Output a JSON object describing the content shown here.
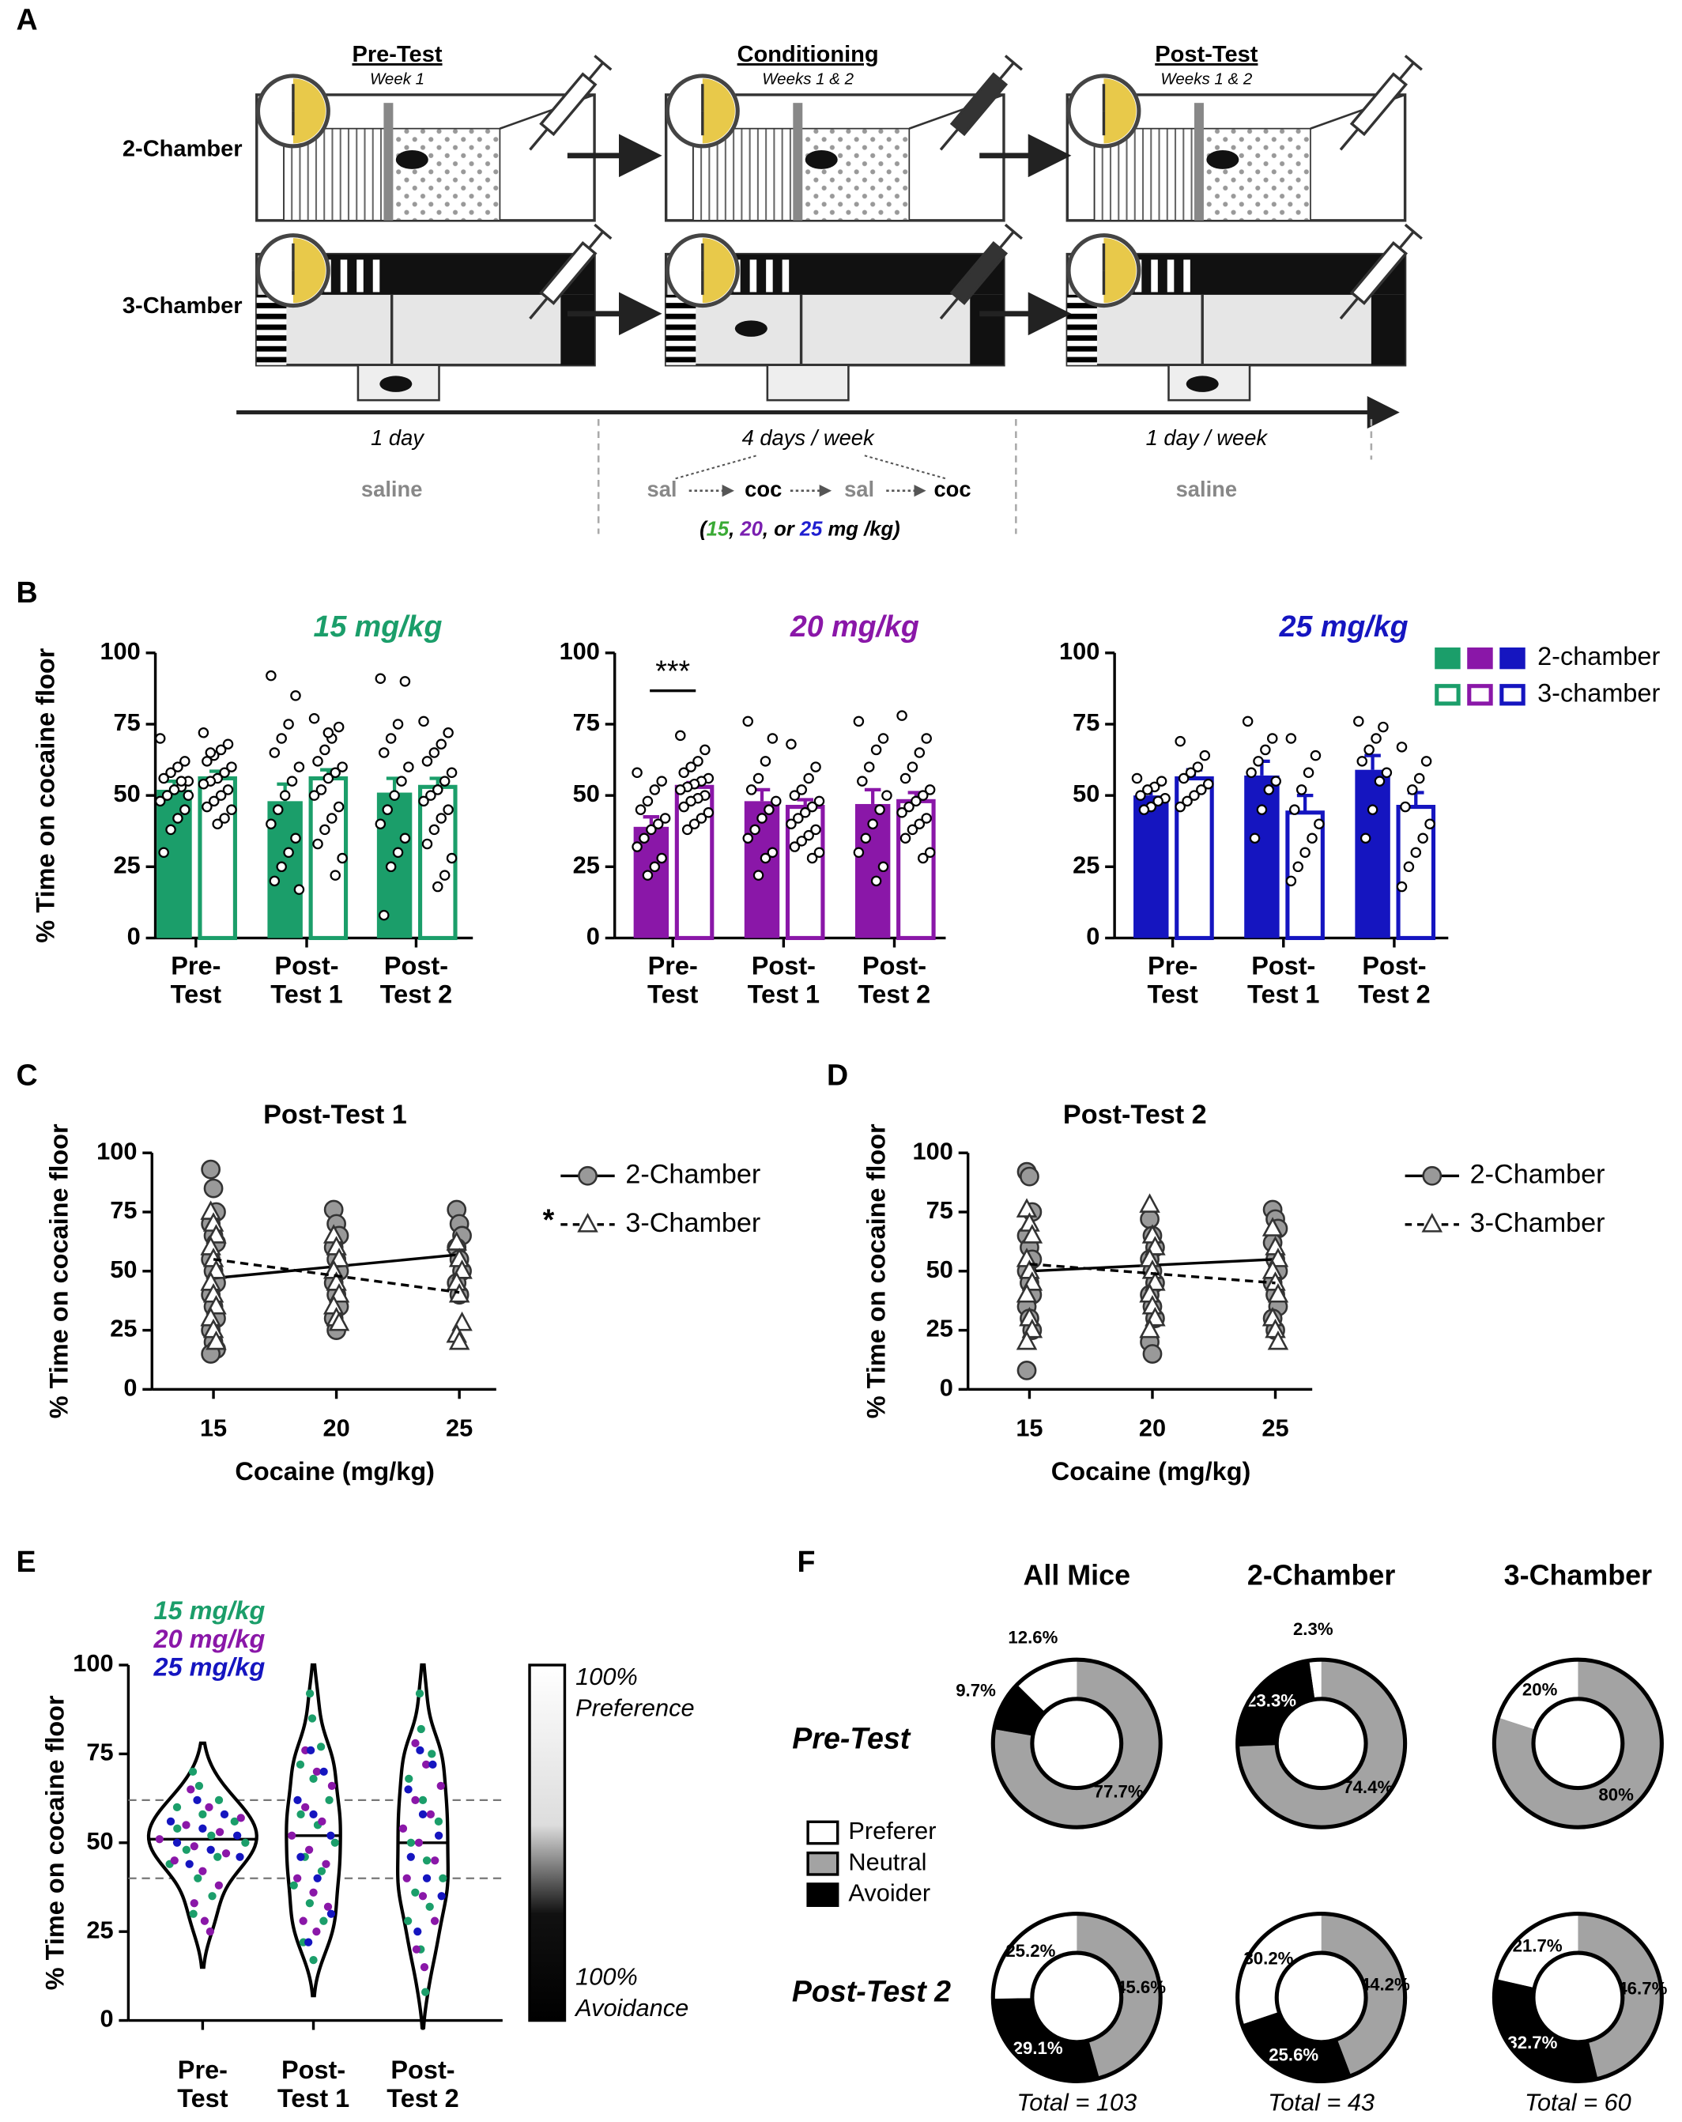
{
  "panels": [
    "A",
    "B",
    "C",
    "D",
    "E",
    "F"
  ],
  "schematic": {
    "stages": [
      {
        "title": "Pre-Test",
        "subtitle": "Week 1",
        "duration": "1 day",
        "treatment": "saline"
      },
      {
        "title": "Conditioning",
        "subtitle": "Weeks 1 & 2",
        "duration": "4 days / week"
      },
      {
        "title": "Post-Test",
        "subtitle": "Weeks 1 & 2",
        "duration": "1 day / week",
        "treatment": "saline"
      }
    ],
    "rows": [
      "2-Chamber",
      "3-Chamber"
    ],
    "sequence": [
      "sal",
      "coc",
      "sal",
      "coc"
    ],
    "dose_note": [
      {
        "text": "(",
        "color": "#000000"
      },
      {
        "text": "15",
        "color": "#3aaa35"
      },
      {
        "text": ", ",
        "color": "#000000"
      },
      {
        "text": "20",
        "color": "#7a1fb0"
      },
      {
        "text": ", or ",
        "color": "#000000"
      },
      {
        "text": "25",
        "color": "#1f1fd0"
      },
      {
        "text": " mg /kg)",
        "color": "#000000"
      }
    ]
  },
  "chart_data": [
    {
      "type": "bar",
      "title": "15 mg/kg",
      "color": "#1b9e6a",
      "ylabel": "% Time on cocaine floor",
      "categories": [
        [
          "Pre-",
          "Test"
        ],
        [
          "Post-",
          "Test 1"
        ],
        [
          "Post-",
          "Test 2"
        ]
      ],
      "ylim": [
        0,
        100
      ],
      "yticks": [
        0,
        25,
        50,
        75,
        100
      ],
      "series": [
        {
          "style": "filled",
          "values": [
            52,
            48,
            51
          ],
          "errors": [
            3,
            6,
            5
          ],
          "points": [
            [
              70,
              62,
              60,
              58,
              56,
              55,
              53,
              52,
              50,
              48,
              45,
              42,
              38,
              30,
              50,
              55
            ],
            [
              92,
              85,
              75,
              70,
              65,
              60,
              55,
              50,
              45,
              40,
              35,
              30,
              25,
              20,
              17
            ],
            [
              91,
              90,
              75,
              70,
              65,
              60,
              55,
              50,
              45,
              40,
              35,
              30,
              25,
              8
            ]
          ]
        },
        {
          "style": "outline",
          "values": [
            56,
            56,
            53
          ],
          "errors": [
            2.5,
            3,
            3
          ],
          "points": [
            [
              72,
              68,
              66,
              64,
              62,
              60,
              58,
              56,
              55,
              54,
              52,
              50,
              48,
              46,
              45,
              42,
              40,
              65
            ],
            [
              77,
              74,
              70,
              66,
              62,
              60,
              58,
              56,
              52,
              50,
              46,
              42,
              38,
              33,
              28,
              22,
              72
            ],
            [
              76,
              72,
              68,
              65,
              62,
              58,
              55,
              52,
              50,
              48,
              45,
              42,
              38,
              33,
              28,
              22,
              18
            ]
          ]
        }
      ]
    },
    {
      "type": "bar",
      "title": "20 mg/kg",
      "color": "#8a17a8",
      "annotation": "***",
      "categories": [
        [
          "Pre-",
          "Test"
        ],
        [
          "Post-",
          "Test 1"
        ],
        [
          "Post-",
          "Test 2"
        ]
      ],
      "ylim": [
        0,
        100
      ],
      "yticks": [
        0,
        25,
        50,
        75,
        100
      ],
      "series": [
        {
          "style": "filled",
          "values": [
            39,
            48,
            47
          ],
          "errors": [
            3.5,
            4,
            5
          ],
          "points": [
            [
              58,
              55,
              52,
              48,
              45,
              42,
              40,
              38,
              35,
              32,
              28,
              25,
              22
            ],
            [
              76,
              70,
              62,
              56,
              52,
              48,
              45,
              42,
              38,
              35,
              30,
              28,
              22
            ],
            [
              76,
              70,
              66,
              60,
              55,
              50,
              45,
              40,
              35,
              30,
              25,
              20
            ]
          ]
        },
        {
          "style": "outline",
          "values": [
            53,
            46,
            48
          ],
          "errors": [
            1.5,
            2.5,
            3
          ],
          "points": [
            [
              71,
              66,
              62,
              60,
              58,
              56,
              55,
              54,
              53,
              52,
              50,
              49,
              48,
              46,
              44,
              42,
              40,
              38
            ],
            [
              68,
              60,
              56,
              52,
              50,
              48,
              46,
              44,
              42,
              40,
              38,
              36,
              34,
              32,
              30,
              28
            ],
            [
              78,
              70,
              65,
              60,
              56,
              52,
              50,
              48,
              46,
              44,
              42,
              40,
              38,
              35,
              30,
              28
            ]
          ]
        }
      ]
    },
    {
      "type": "bar",
      "title": "25 mg/kg",
      "color": "#1515c0",
      "legend_colors": [
        "#1b9e6a",
        "#8a17a8",
        "#1515c0"
      ],
      "categories": [
        [
          "Pre-",
          "Test"
        ],
        [
          "Post-",
          "Test 1"
        ],
        [
          "Post-",
          "Test 2"
        ]
      ],
      "ylim": [
        0,
        100
      ],
      "yticks": [
        0,
        25,
        50,
        75,
        100
      ],
      "series": [
        {
          "name": "2-chamber",
          "style": "filled",
          "values": [
            50,
            57,
            59
          ],
          "errors": [
            2.5,
            5,
            5
          ],
          "points": [
            [
              56,
              55,
              53,
              52,
              50,
              49,
              48,
              46,
              45
            ],
            [
              76,
              70,
              66,
              62,
              58,
              55,
              52,
              45,
              35
            ],
            [
              76,
              74,
              70,
              66,
              62,
              58,
              55,
              45,
              35
            ]
          ]
        },
        {
          "name": "3-chamber",
          "style": "outline",
          "values": [
            56,
            44,
            46
          ],
          "errors": [
            3,
            6,
            5
          ],
          "points": [
            [
              69,
              64,
              60,
              58,
              56,
              54,
              52,
              50,
              48,
              46
            ],
            [
              70,
              64,
              58,
              52,
              45,
              40,
              35,
              30,
              25,
              20
            ],
            [
              67,
              62,
              56,
              52,
              46,
              40,
              35,
              30,
              25,
              18
            ]
          ]
        }
      ]
    },
    {
      "type": "scatter",
      "title": "Post-Test 1",
      "xlabel": "Cocaine (mg/kg)",
      "ylabel": "% Time on cocaine floor",
      "x": [
        15,
        20,
        25
      ],
      "xlim": [
        12.5,
        26.5
      ],
      "xticks": [
        15,
        20,
        25
      ],
      "ylim": [
        0,
        100
      ],
      "yticks": [
        0,
        25,
        50,
        75,
        100
      ],
      "series": [
        {
          "name": "2-Chamber",
          "marker": "circle",
          "color": "#999999",
          "fit": [
            47,
            57
          ],
          "values": [
            [
              93,
              85,
              75,
              70,
              65,
              62,
              55,
              50,
              45,
              40,
              35,
              30,
              25,
              20,
              17,
              15
            ],
            [
              76,
              70,
              65,
              60,
              55,
              50,
              45,
              40,
              35,
              30,
              25
            ],
            [
              76,
              70,
              65,
              60,
              55,
              50,
              45,
              40
            ]
          ]
        },
        {
          "name": "3-Chamber",
          "annotation": "*",
          "marker": "triangle",
          "color": "#ffffff",
          "fit": [
            55,
            41
          ],
          "values": [
            [
              75,
              70,
              65,
              60,
              55,
              50,
              45,
              40,
              35,
              30,
              25,
              20
            ],
            [
              65,
              60,
              55,
              50,
              45,
              40,
              35,
              30,
              28
            ],
            [
              62,
              55,
              50,
              45,
              40,
              28,
              23,
              20
            ]
          ]
        }
      ]
    },
    {
      "type": "scatter",
      "title": "Post-Test 2",
      "xlabel": "Cocaine (mg/kg)",
      "ylabel": "% Time on cocaine floor",
      "x": [
        15,
        20,
        25
      ],
      "xlim": [
        12.5,
        26.5
      ],
      "xticks": [
        15,
        20,
        25
      ],
      "ylim": [
        0,
        100
      ],
      "yticks": [
        0,
        25,
        50,
        75,
        100
      ],
      "series": [
        {
          "name": "2-Chamber",
          "marker": "circle",
          "color": "#999999",
          "fit": [
            50,
            55
          ],
          "values": [
            [
              92,
              90,
              75,
              65,
              60,
              55,
              50,
              45,
              40,
              35,
              30,
              25,
              8
            ],
            [
              72,
              65,
              60,
              55,
              50,
              45,
              40,
              35,
              30,
              20,
              15
            ],
            [
              76,
              72,
              68,
              62,
              55,
              50,
              45,
              40,
              35,
              30,
              25
            ]
          ]
        },
        {
          "name": "3-Chamber",
          "marker": "triangle",
          "color": "#ffffff",
          "fit": [
            53,
            45
          ],
          "values": [
            [
              76,
              70,
              65,
              55,
              50,
              45,
              40,
              30,
              25,
              20
            ],
            [
              78,
              65,
              60,
              55,
              50,
              45,
              40,
              35,
              30,
              25
            ],
            [
              68,
              60,
              55,
              50,
              45,
              40,
              30,
              25,
              20
            ]
          ]
        }
      ]
    },
    {
      "type": "violin",
      "ylabel": "% Time on cocaine floor",
      "categories": [
        [
          "Pre-",
          "Test"
        ],
        [
          "Post-",
          "Test 1"
        ],
        [
          "Post-",
          "Test 2"
        ]
      ],
      "ylim": [
        0,
        100
      ],
      "yticks": [
        0,
        25,
        50,
        75,
        100
      ],
      "hlines": [
        62,
        40
      ],
      "colorbar": {
        "top": [
          "100%",
          "Preference"
        ],
        "bottom": [
          "100%",
          "Avoidance"
        ]
      },
      "series": [
        {
          "name": "15 mg/kg",
          "color": "#1b9e6a",
          "values": [
            [
              70,
              66,
              62,
              60,
              58,
              56,
              54,
              52,
              50,
              48,
              46,
              44,
              40,
              35,
              30
            ],
            [
              92,
              85,
              77,
              72,
              68,
              62,
              58,
              55,
              50,
              46,
              42,
              38,
              33,
              28,
              22,
              17
            ],
            [
              92,
              82,
              75,
              68,
              62,
              56,
              50,
              45,
              40,
              36,
              32,
              28,
              20,
              8
            ]
          ]
        },
        {
          "name": "20 mg/kg",
          "color": "#8a17a8",
          "values": [
            [
              65,
              60,
              57,
              55,
              53,
              51,
              49,
              47,
              45,
              42,
              38,
              33,
              28,
              25
            ],
            [
              76,
              70,
              66,
              60,
              56,
              52,
              48,
              44,
              40,
              36,
              32,
              28,
              25
            ],
            [
              78,
              72,
              66,
              62,
              58,
              54,
              50,
              45,
              40,
              35,
              28,
              20,
              15
            ]
          ]
        },
        {
          "name": "25 mg/kg",
          "color": "#1515c0",
          "values": [
            [
              62,
              58,
              56,
              54,
              52,
              50,
              48,
              46,
              44
            ],
            [
              76,
              70,
              62,
              58,
              52,
              46,
              40,
              30,
              22
            ],
            [
              76,
              72,
              65,
              58,
              52,
              46,
              40,
              35,
              25
            ]
          ]
        }
      ]
    },
    {
      "type": "donut",
      "columns": [
        "All Mice",
        "2-Chamber",
        "3-Chamber"
      ],
      "rows": [
        "Pre-Test",
        "Post-Test 2"
      ],
      "categories": [
        "Preferer",
        "Neutral",
        "Avoider"
      ],
      "colors": [
        "#ffffff",
        "#a3a3a3",
        "#000000"
      ],
      "values": [
        [
          [
            12.6,
            77.7,
            9.7
          ],
          [
            2.3,
            74.4,
            23.3
          ],
          [
            20,
            80,
            0
          ]
        ],
        [
          [
            25.2,
            45.6,
            29.1
          ],
          [
            30.2,
            44.2,
            25.6
          ],
          [
            21.7,
            46.7,
            32.7
          ]
        ]
      ],
      "value_labels": [
        [
          [
            "12.6%",
            "77.7%",
            "9.7%"
          ],
          [
            "2.3%",
            "74.4%",
            "23.3%"
          ],
          [
            "20%",
            "80%",
            null
          ]
        ],
        [
          [
            "25.2%",
            "45.6%",
            "29.1%"
          ],
          [
            "30.2%",
            "44.2%",
            "25.6%"
          ],
          [
            "21.7%",
            "46.7%",
            "32.7%"
          ]
        ]
      ],
      "totals": [
        "Total = 103",
        "Total = 43",
        "Total = 60"
      ]
    }
  ]
}
